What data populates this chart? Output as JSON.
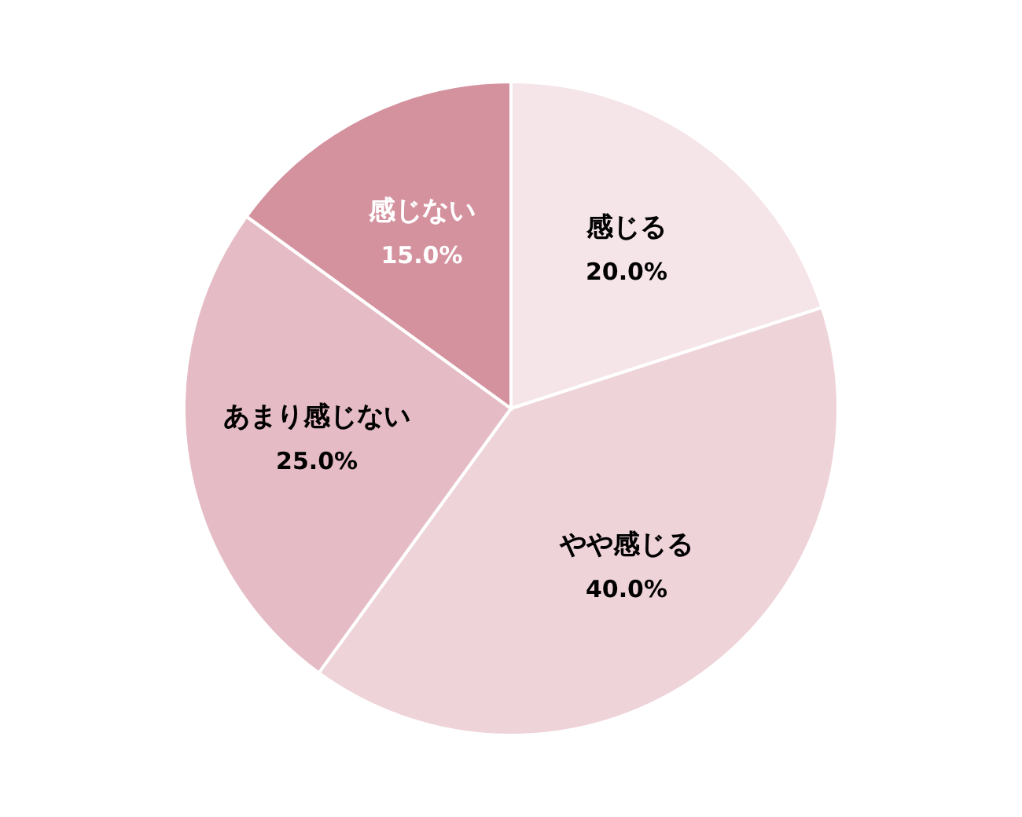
{
  "chart_data": {
    "type": "pie",
    "categories": [
      "感じる",
      "やや感じる",
      "あまり感じない",
      "感じない"
    ],
    "values": [
      20.0,
      40.0,
      25.0,
      15.0
    ],
    "value_labels": [
      "20.0%",
      "40.0%",
      "25.0%",
      "15.0%"
    ],
    "colors": [
      "#f5e4e8",
      "#eed3d9",
      "#e5bcc5",
      "#d4929f"
    ],
    "legend": false
  }
}
